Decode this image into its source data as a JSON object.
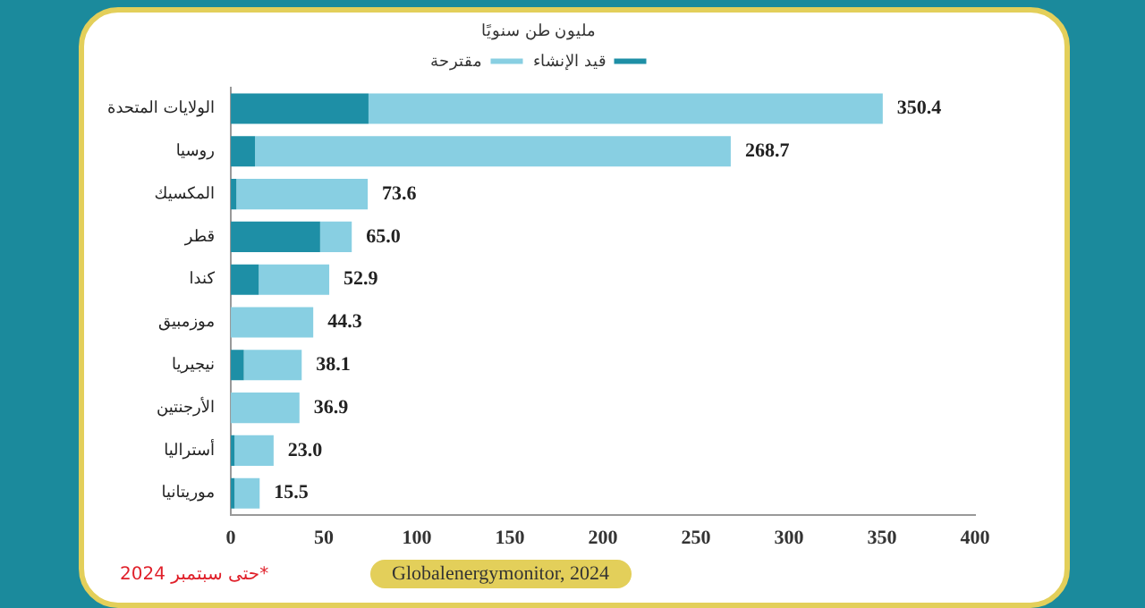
{
  "chart_data": {
    "type": "bar",
    "orientation": "horizontal",
    "stacked": true,
    "legend_title": "مليون طن سنويًا",
    "categories": [
      "الولايات المتحدة",
      "روسيا",
      "المكسيك",
      "قطر",
      "كندا",
      "موزمبيق",
      "نيجيريا",
      "الأرجنتين",
      "أستراليا",
      "موريتانيا"
    ],
    "series": [
      {
        "name": "قيد الإنشاء",
        "color": "#1e8fa6",
        "values": [
          74,
          13,
          3,
          48,
          15,
          0,
          7,
          0,
          2,
          2
        ]
      },
      {
        "name": "مقترحة",
        "color": "#88cfe2",
        "values": [
          276.4,
          255.7,
          70.6,
          17.0,
          37.9,
          44.3,
          31.1,
          36.9,
          21.0,
          13.5
        ]
      }
    ],
    "totals": [
      "350.4",
      "268.7",
      "73.6",
      "65.0",
      "52.9",
      "44.3",
      "38.1",
      "36.9",
      "23.0",
      "15.5"
    ],
    "xlim": [
      0,
      400
    ],
    "xticks": [
      0,
      50,
      100,
      150,
      200,
      250,
      300,
      350,
      400
    ],
    "grid": false,
    "legend": "top",
    "annotations": [
      "Globalenergymonitor, 2024",
      "*حتى سبتمبر 2024"
    ]
  }
}
